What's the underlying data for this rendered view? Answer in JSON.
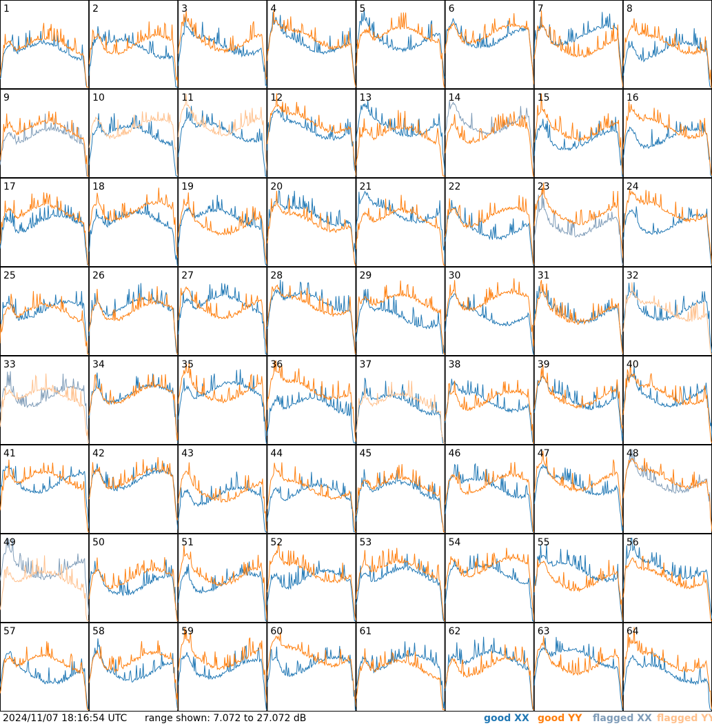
{
  "chart_data": {
    "type": "line",
    "rows": 8,
    "cols": 8,
    "panel_labels": [
      "1",
      "2",
      "3",
      "4",
      "5",
      "6",
      "7",
      "8",
      "9",
      "10",
      "11",
      "12",
      "13",
      "14",
      "15",
      "16",
      "17",
      "18",
      "19",
      "20",
      "21",
      "22",
      "23",
      "24",
      "25",
      "26",
      "27",
      "28",
      "29",
      "30",
      "31",
      "32",
      "33",
      "34",
      "35",
      "36",
      "37",
      "38",
      "39",
      "40",
      "41",
      "42",
      "43",
      "44",
      "45",
      "46",
      "47",
      "48",
      "49",
      "50",
      "51",
      "52",
      "53",
      "54",
      "55",
      "56",
      "57",
      "58",
      "59",
      "60",
      "61",
      "62",
      "63",
      "64"
    ],
    "ylim": [
      7.072,
      27.072
    ],
    "range_text": "range shown: 7.072 to 27.072 dB",
    "timestamp": "2024/11/07 18:16:54 UTC",
    "legend": [
      {
        "label": "good XX",
        "color": "#1f77b4"
      },
      {
        "label": "good YY",
        "color": "#ff7f0e"
      },
      {
        "label": "flagged XX",
        "color": "#7f9cb8"
      },
      {
        "label": "flagged YY",
        "color": "#ffc08c"
      }
    ],
    "legend_placement": "bottom-right",
    "flagged": {
      "xx": [
        "9",
        "14",
        "23",
        "33",
        "48",
        "49"
      ],
      "yy": [
        "10",
        "11",
        "32",
        "33",
        "37",
        "49"
      ]
    }
  }
}
